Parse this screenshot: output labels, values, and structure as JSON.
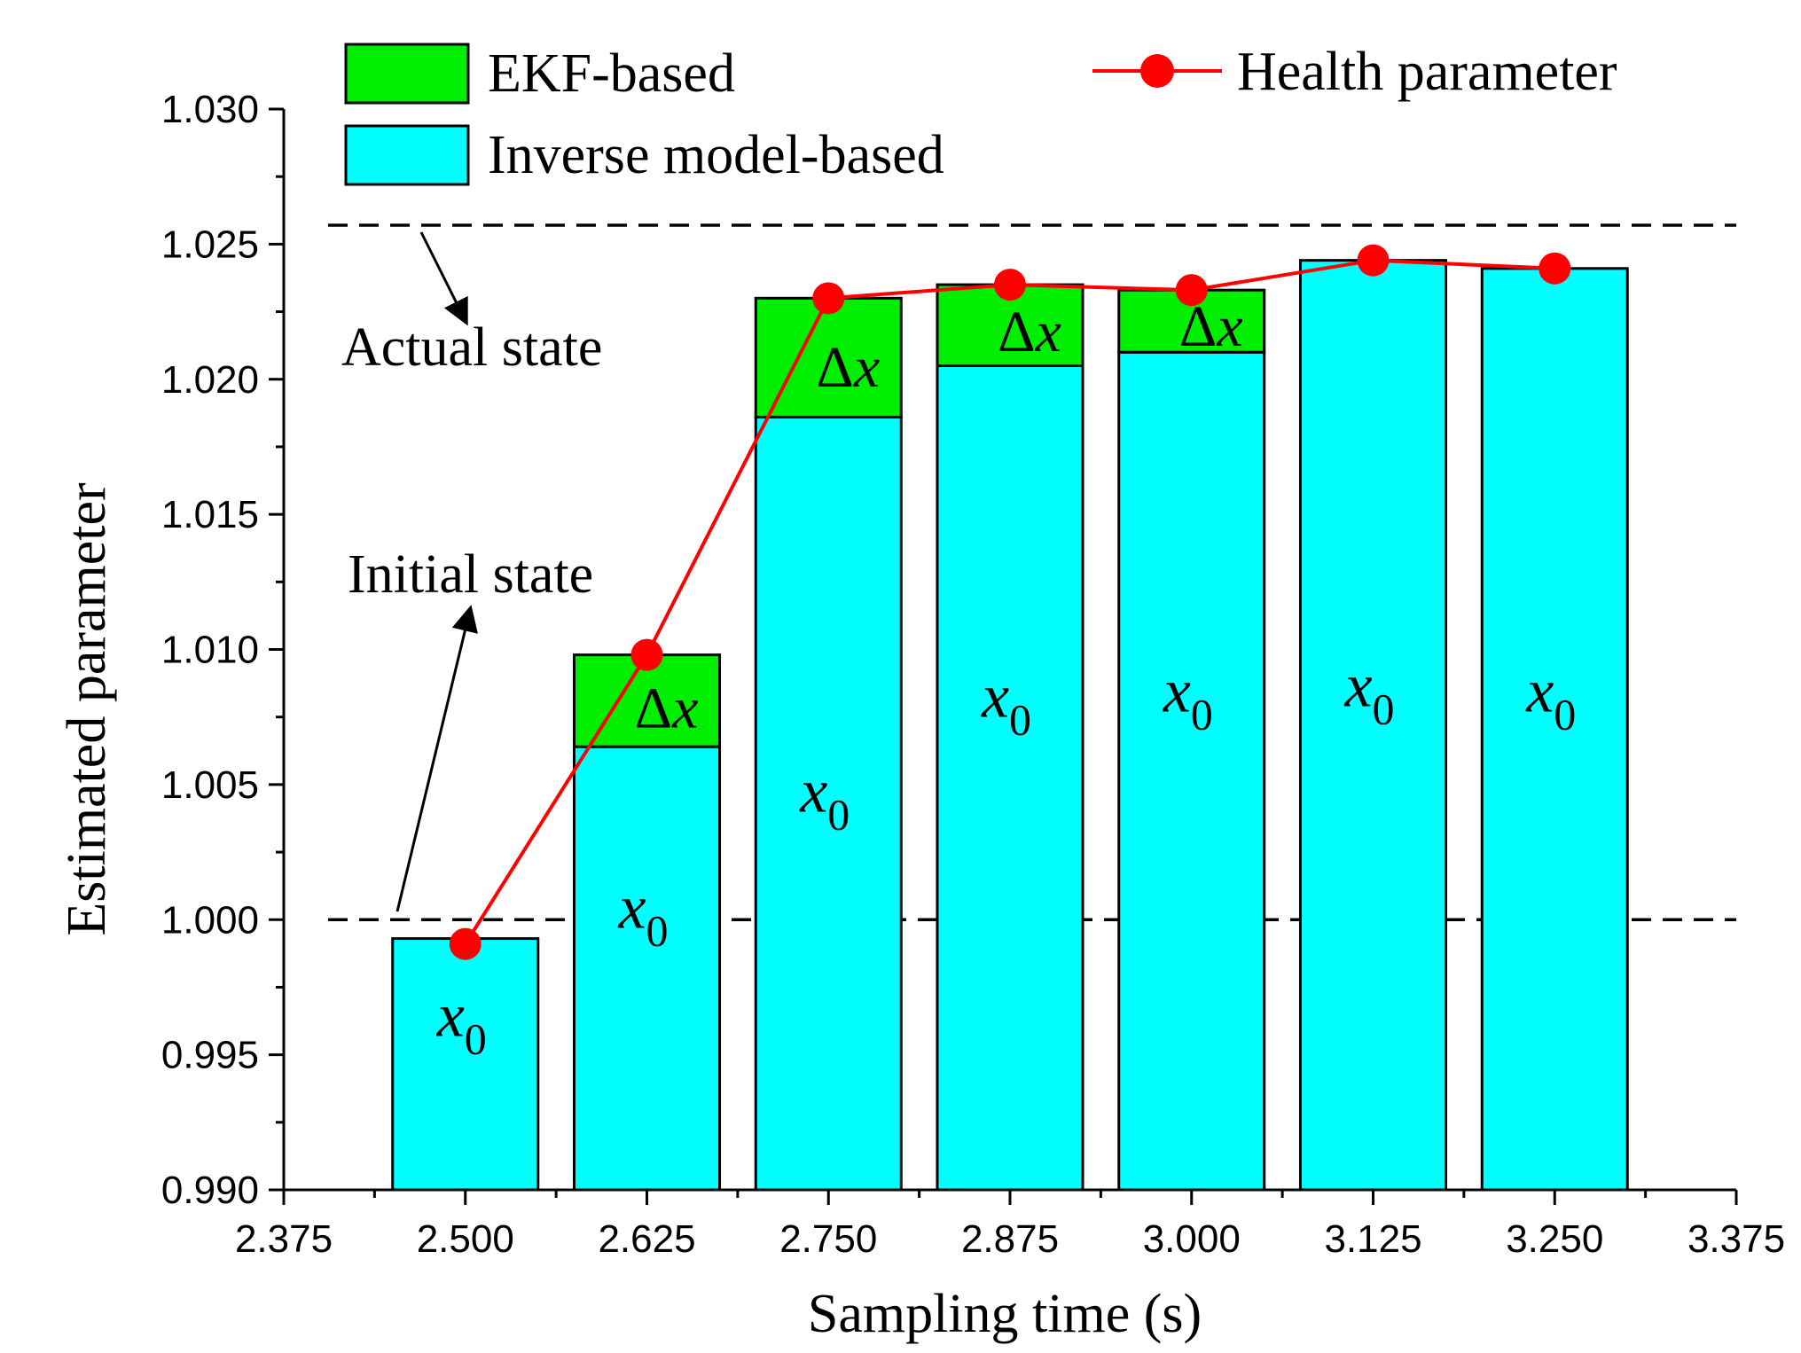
{
  "chart_data": {
    "type": "bar",
    "stacked": true,
    "xlabel": "Sampling time (s)",
    "ylabel": "Estimated parameter",
    "xlim": [
      2.375,
      3.375
    ],
    "xticks": [
      "2.375",
      "2.500",
      "2.625",
      "2.750",
      "2.875",
      "3.000",
      "3.125",
      "3.250",
      "3.375"
    ],
    "ylim": [
      0.99,
      1.03
    ],
    "yticks": [
      "0.990",
      "0.995",
      "1.000",
      "1.005",
      "1.010",
      "1.015",
      "1.020",
      "1.025",
      "1.030"
    ],
    "x": [
      2.5,
      2.625,
      2.75,
      2.875,
      3.0,
      3.125,
      3.25
    ],
    "series": [
      {
        "name": "Inverse model-based",
        "color": "#00ffff",
        "values": [
          0.9993,
          1.0064,
          1.0186,
          1.0205,
          1.021,
          1.0244,
          1.0241
        ],
        "bar_labels": [
          "x0",
          "x0",
          "x0",
          "x0",
          "x0",
          "x0",
          "x0"
        ]
      },
      {
        "name": "EKF-based",
        "color": "#00ee00",
        "increments": [
          0,
          0.0034,
          0.0044,
          0.003,
          0.0023,
          0,
          0
        ],
        "bar_labels": [
          "",
          "Δx",
          "Δx",
          "Δx",
          "Δx",
          "",
          ""
        ]
      },
      {
        "name": "Health parameter",
        "type": "line",
        "color": "#ff0000",
        "values": [
          0.9991,
          1.0098,
          1.023,
          1.0235,
          1.0233,
          1.0244,
          1.0241
        ]
      }
    ],
    "reference_lines": [
      {
        "name": "Actual state",
        "y": 1.0257
      },
      {
        "name": "Initial state",
        "y": 1.0
      }
    ],
    "annotations": [
      "Actual state",
      "Initial state"
    ],
    "legend": {
      "placement": "top"
    }
  }
}
